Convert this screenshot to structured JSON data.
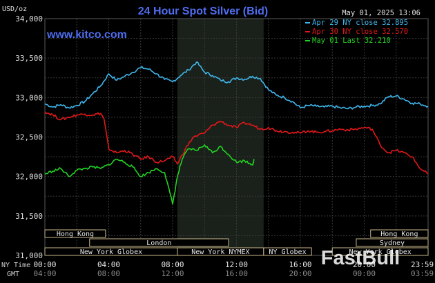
{
  "chart_data": {
    "type": "line",
    "title": "24 Hour Spot Silver (Bid)",
    "source": "www.kitco.com",
    "timestamp": "May 01, 2025 13:06",
    "y_unit": "USD/oz",
    "ylim": [
      31.0,
      34.0
    ],
    "y_ticks": [
      "34,000",
      "33,500",
      "33,000",
      "32,500",
      "32,000",
      "31,500",
      "31,000"
    ],
    "y_tick_values": [
      34.0,
      33.5,
      33.0,
      32.5,
      32.0,
      31.5,
      31.0
    ],
    "xlim": [
      0,
      24
    ],
    "x_label_nytime": "NY Time",
    "x_label_gmt": "GMT",
    "x_ticks_ny": [
      "00:00",
      "04:00",
      "08:00",
      "12:00",
      "16:00",
      "20:00",
      "23:59"
    ],
    "x_ticks_gmt": [
      "04:00",
      "08:00",
      "12:00",
      "16:00",
      "20:00",
      "00:00",
      "03:59"
    ],
    "x_tick_hours": [
      0,
      4,
      8,
      12,
      16,
      20,
      23.98
    ],
    "highlight_hours": [
      8.3,
      13.7
    ],
    "series": [
      {
        "name": "Apr 29 NY close 32.895",
        "color": "#3fb8ef",
        "x": [
          0,
          0.5,
          1,
          1.5,
          2,
          2.5,
          3,
          3.5,
          4,
          4.5,
          5,
          5.5,
          6,
          6.5,
          7,
          7.5,
          8,
          8.5,
          9,
          9.5,
          10,
          10.5,
          11,
          11.5,
          12,
          12.5,
          13,
          13.5,
          14,
          14.5,
          15,
          15.5,
          16,
          16.5,
          17,
          17.5,
          18,
          18.5,
          19,
          19.5,
          20,
          20.5,
          21,
          21.5,
          22,
          22.5,
          23,
          23.5,
          24
        ],
        "y": [
          32.92,
          32.88,
          32.91,
          32.87,
          32.9,
          32.95,
          33.05,
          33.15,
          33.3,
          33.22,
          33.27,
          33.32,
          33.38,
          33.36,
          33.3,
          33.23,
          33.2,
          33.28,
          33.35,
          33.45,
          33.32,
          33.28,
          33.22,
          33.2,
          33.25,
          33.23,
          33.27,
          33.24,
          33.1,
          33.03,
          33.0,
          32.95,
          32.87,
          32.9,
          32.89,
          32.88,
          32.89,
          32.87,
          32.86,
          32.88,
          32.89,
          32.9,
          32.92,
          33.01,
          33.02,
          32.98,
          32.93,
          32.92,
          32.89
        ]
      },
      {
        "name": "Apr 30 NY close 32.570",
        "color": "#e21818",
        "x": [
          0,
          0.5,
          1,
          1.5,
          2,
          2.5,
          3,
          3.5,
          3.7,
          4,
          4.5,
          5,
          5.5,
          6,
          6.5,
          7,
          7.5,
          8,
          8.3,
          8.8,
          9.3,
          10,
          10.5,
          11,
          11.5,
          12,
          12.5,
          13,
          13.5,
          14,
          14.5,
          15,
          15.5,
          16,
          16.5,
          17,
          17.5,
          18,
          18.5,
          19,
          19.5,
          20,
          20.5,
          21,
          21.5,
          22,
          22.5,
          23,
          23.5,
          24
        ],
        "y": [
          32.82,
          32.78,
          32.72,
          32.75,
          32.78,
          32.79,
          32.78,
          32.8,
          32.73,
          32.35,
          32.3,
          32.33,
          32.28,
          32.22,
          32.25,
          32.18,
          32.2,
          32.25,
          32.16,
          32.35,
          32.5,
          32.55,
          32.65,
          32.7,
          32.65,
          32.62,
          32.68,
          32.65,
          32.6,
          32.62,
          32.58,
          32.57,
          32.56,
          32.55,
          32.58,
          32.56,
          32.57,
          32.58,
          32.6,
          32.59,
          32.6,
          32.62,
          32.6,
          32.4,
          32.3,
          32.33,
          32.3,
          32.25,
          32.1,
          32.03
        ]
      },
      {
        "name": "May 01 Last 32.210",
        "color": "#22d322",
        "x": [
          0,
          0.5,
          1,
          1.5,
          2,
          2.5,
          3,
          3.5,
          4,
          4.5,
          5,
          5.5,
          6,
          6.5,
          7,
          7.5,
          8,
          8.3,
          8.6,
          9,
          9.5,
          10,
          10.5,
          11,
          11.5,
          12,
          12.5,
          13,
          13.1
        ],
        "y": [
          32.03,
          32.07,
          32.1,
          32.0,
          32.08,
          32.1,
          32.12,
          32.1,
          32.15,
          32.22,
          32.18,
          32.12,
          32.0,
          32.05,
          32.1,
          32.05,
          31.65,
          32.0,
          32.22,
          32.35,
          32.33,
          32.4,
          32.3,
          32.38,
          32.28,
          32.18,
          32.2,
          32.15,
          32.21
        ]
      }
    ],
    "sessions": [
      {
        "label": "Hong Kong",
        "start": 0,
        "end": 3.8,
        "row": 0
      },
      {
        "label": "Hong Kong",
        "start": 20.4,
        "end": 24,
        "row": 0
      },
      {
        "label": "London",
        "start": 2.8,
        "end": 11.5,
        "row": 1
      },
      {
        "label": "Sydney",
        "start": 19.5,
        "end": 24,
        "row": 1
      },
      {
        "label": "New York Globex",
        "start": 0,
        "end": 8.3,
        "row": 2
      },
      {
        "label": "New York NYMEX",
        "start": 8.3,
        "end": 13.7,
        "row": 2
      },
      {
        "label": "NY Globex",
        "start": 13.7,
        "end": 16.7,
        "row": 2
      },
      {
        "label": "New York Globex",
        "start": 18,
        "end": 24,
        "row": 2
      }
    ]
  },
  "watermark": "FastBull"
}
